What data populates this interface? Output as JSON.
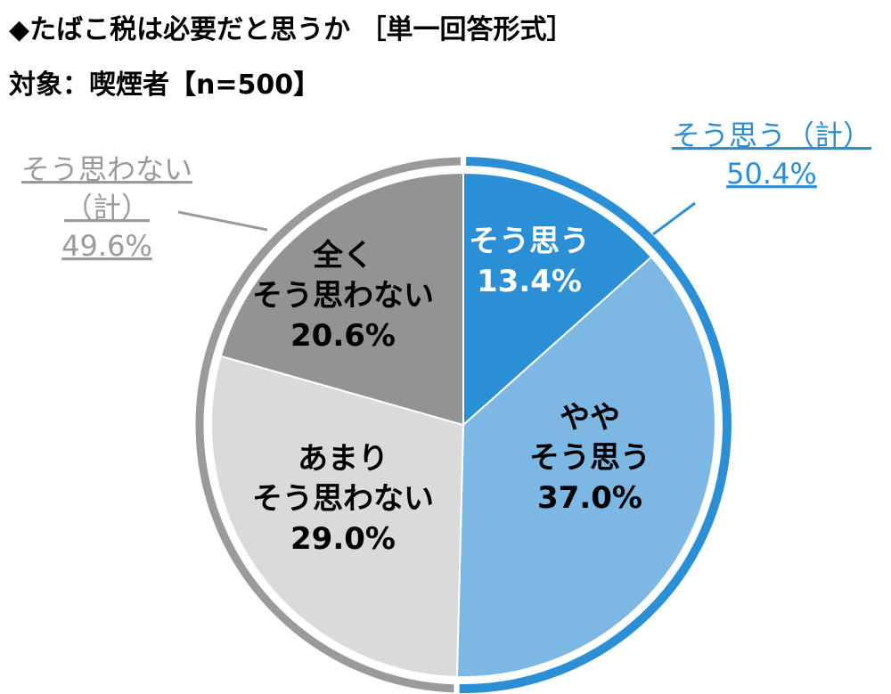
{
  "header": {
    "title": "◆たばこ税は必要だと思うか ［単一回答形式］",
    "subtitle": "対象：喫煙者【n=500】"
  },
  "chart_data": {
    "type": "pie",
    "title": "◆たばこ税は必要だと思うか ［単一回答形式］",
    "subtitle": "対象：喫煙者【n=500】",
    "unit": "%",
    "slices": [
      {
        "label_lines": [
          "そう思う"
        ],
        "value": 13.4,
        "value_label": "13.4%",
        "color": "#2b8fd5",
        "text_color": "#ffffff"
      },
      {
        "label_lines": [
          "やや",
          "そう思う"
        ],
        "value": 37.0,
        "value_label": "37.0%",
        "color": "#7db8e4",
        "text_color": "#000000"
      },
      {
        "label_lines": [
          "あまり",
          "そう思わない"
        ],
        "value": 29.0,
        "value_label": "29.0%",
        "color": "#dadada",
        "text_color": "#000000"
      },
      {
        "label_lines": [
          "全く",
          "そう思わない"
        ],
        "value": 20.6,
        "value_label": "20.6%",
        "color": "#939393",
        "text_color": "#000000"
      }
    ],
    "groups": [
      {
        "label_lines": [
          "そう思う（計）"
        ],
        "value": 50.4,
        "value_label": "50.4%",
        "color": "#2b8fd5"
      },
      {
        "label_lines": [
          "そう思わない",
          "（計）"
        ],
        "value": 49.6,
        "value_label": "49.6%",
        "color": "#9a9a9a"
      }
    ]
  }
}
